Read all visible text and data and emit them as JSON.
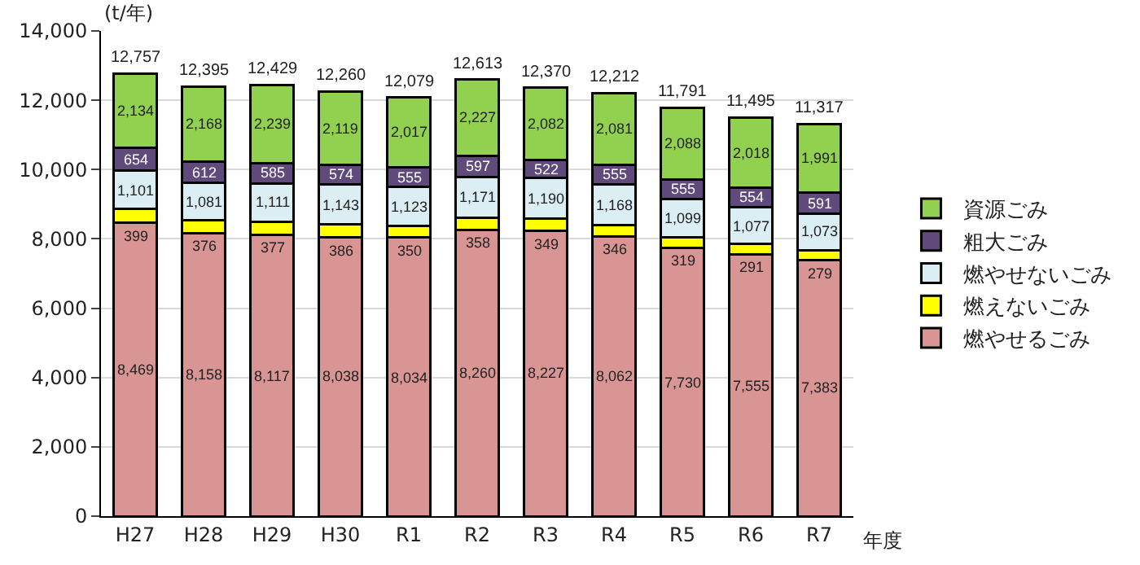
{
  "chart_data": {
    "type": "bar",
    "stacked": true,
    "ylabel": "(t/年)",
    "xlabel": "年度",
    "categories": [
      "H27",
      "H28",
      "H29",
      "H30",
      "R1",
      "R2",
      "R3",
      "R4",
      "R5",
      "R6",
      "R7"
    ],
    "series": [
      {
        "name": "燃やせるごみ",
        "color": "#d99594",
        "values": [
          8469,
          8158,
          8117,
          8038,
          8034,
          8260,
          8227,
          8062,
          7730,
          7555,
          7383
        ],
        "value_labels": [
          "8,469",
          "8,158",
          "8,117",
          "8,038",
          "8,034",
          "8,260",
          "8,227",
          "8,062",
          "7,730",
          "7,555",
          "7,383"
        ]
      },
      {
        "name": "燃えないごみ",
        "color": "#ffff00",
        "values": [
          399,
          376,
          377,
          386,
          350,
          358,
          349,
          346,
          319,
          291,
          279
        ],
        "value_labels": [
          "399",
          "376",
          "377",
          "386",
          "350",
          "358",
          "349",
          "346",
          "319",
          "291",
          "279"
        ]
      },
      {
        "name": "燃やせないごみ",
        "color": "#daeef3",
        "values": [
          1101,
          1081,
          1111,
          1143,
          1123,
          1171,
          1190,
          1168,
          1099,
          1077,
          1073
        ],
        "value_labels": [
          "1,101",
          "1,081",
          "1,111",
          "1,143",
          "1,123",
          "1,171",
          "1,190",
          "1,168",
          "1,099",
          "1,077",
          "1,073"
        ]
      },
      {
        "name": "粗大ごみ",
        "color": "#604a7b",
        "values": [
          654,
          612,
          585,
          574,
          555,
          597,
          522,
          555,
          555,
          554,
          591
        ],
        "value_labels": [
          "654",
          "612",
          "585",
          "574",
          "555",
          "597",
          "522",
          "555",
          "555",
          "554",
          "591"
        ]
      },
      {
        "name": "資源ごみ",
        "color": "#92d050",
        "values": [
          2134,
          2168,
          2239,
          2119,
          2017,
          2227,
          2082,
          2081,
          2088,
          2018,
          1991
        ],
        "value_labels": [
          "2,134",
          "2,168",
          "2,239",
          "2,119",
          "2,017",
          "2,227",
          "2,082",
          "2,081",
          "2,088",
          "2,018",
          "1,991"
        ]
      }
    ],
    "totals": [
      "12,757",
      "12,395",
      "12,429",
      "12,260",
      "12,079",
      "12,613",
      "12,370",
      "12,212",
      "11,791",
      "11,495",
      "11,317"
    ],
    "ylim": [
      0,
      14000
    ],
    "yticks": [
      {
        "value": 0,
        "label": "0"
      },
      {
        "value": 2000,
        "label": "2,000"
      },
      {
        "value": 4000,
        "label": "4,000"
      },
      {
        "value": 6000,
        "label": "6,000"
      },
      {
        "value": 8000,
        "label": "8,000"
      },
      {
        "value": 10000,
        "label": "10,000"
      },
      {
        "value": 12000,
        "label": "12,000"
      },
      {
        "value": 14000,
        "label": "14,000"
      }
    ],
    "grid": "y",
    "legend": "right"
  }
}
